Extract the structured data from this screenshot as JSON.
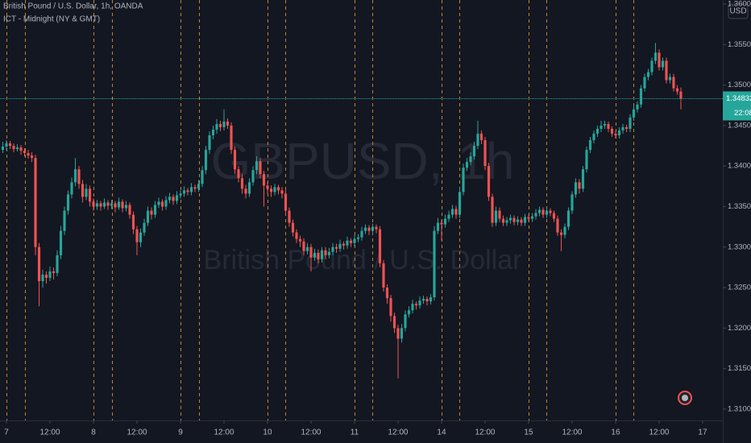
{
  "chart_data": {
    "type": "candlestick",
    "title": "British Pound / U.S. Dollar, 1h, OANDA",
    "indicator": "ICT - Midnight (NY & GMT)",
    "watermark": "GBPUSD, 1h",
    "watermark_subtitle": "British Pound / U.S. Dollar",
    "currency": "USD",
    "countdown": "22:08",
    "last_price": 1.34832,
    "up_color": "#26a69a",
    "down_color": "#ef5350",
    "session_color": "#c4832a",
    "price_line_color": "#26a69a",
    "ylim": [
      1.3086,
      1.3605
    ],
    "yticks": [
      {
        "value": 1.36,
        "label": "1.36000"
      },
      {
        "value": 1.355,
        "label": "1.35500"
      },
      {
        "value": 1.35,
        "label": "1.35000"
      },
      {
        "value": 1.345,
        "label": "1.34500"
      },
      {
        "value": 1.34,
        "label": "1.34000"
      },
      {
        "value": 1.335,
        "label": "1.33500"
      },
      {
        "value": 1.33,
        "label": "1.33000"
      },
      {
        "value": 1.325,
        "label": "1.32500"
      },
      {
        "value": 1.32,
        "label": "1.32000"
      },
      {
        "value": 1.315,
        "label": "1.31500"
      },
      {
        "value": 1.31,
        "label": "1.31000"
      }
    ],
    "xlim": [
      -0.78,
      198.56
    ],
    "xticks": [
      {
        "value": 1,
        "label": "7"
      },
      {
        "value": 13,
        "label": "12:00"
      },
      {
        "value": 25,
        "label": "8"
      },
      {
        "value": 37,
        "label": "12:00"
      },
      {
        "value": 49,
        "label": "9"
      },
      {
        "value": 61,
        "label": "12:00"
      },
      {
        "value": 73,
        "label": "10"
      },
      {
        "value": 85,
        "label": "12:00"
      },
      {
        "value": 97,
        "label": "11"
      },
      {
        "value": 109,
        "label": "12:00"
      },
      {
        "value": 121,
        "label": "14"
      },
      {
        "value": 133,
        "label": "12:00"
      },
      {
        "value": 145,
        "label": "15"
      },
      {
        "value": 157,
        "label": "12:00"
      },
      {
        "value": 169,
        "label": "16"
      },
      {
        "value": 181,
        "label": "12:00"
      },
      {
        "value": 193,
        "label": "17"
      }
    ],
    "session_lines": [
      1,
      6,
      25,
      30,
      49,
      54,
      73,
      78,
      97,
      102,
      121,
      126,
      145,
      150,
      169,
      174
    ],
    "ohlc": [
      [
        1.342,
        1.343,
        1.3416,
        1.3424
      ],
      [
        1.3424,
        1.3432,
        1.342,
        1.3428
      ],
      [
        1.3428,
        1.3431,
        1.3421,
        1.3425
      ],
      [
        1.3425,
        1.3428,
        1.3417,
        1.3421
      ],
      [
        1.3421,
        1.3427,
        1.3418,
        1.3423
      ],
      [
        1.3423,
        1.3426,
        1.3414,
        1.3419
      ],
      [
        1.3419,
        1.3422,
        1.3412,
        1.3416
      ],
      [
        1.3416,
        1.342,
        1.3409,
        1.3413
      ],
      [
        1.3413,
        1.3417,
        1.3405,
        1.341
      ],
      [
        1.341,
        1.3414,
        1.329,
        1.33
      ],
      [
        1.33,
        1.3305,
        1.3227,
        1.3258
      ],
      [
        1.3258,
        1.3272,
        1.325,
        1.3266
      ],
      [
        1.3266,
        1.327,
        1.3255,
        1.3262
      ],
      [
        1.3262,
        1.3276,
        1.3258,
        1.327
      ],
      [
        1.327,
        1.3275,
        1.326,
        1.3268
      ],
      [
        1.3268,
        1.3296,
        1.3264,
        1.329
      ],
      [
        1.329,
        1.3326,
        1.3285,
        1.332
      ],
      [
        1.332,
        1.335,
        1.3315,
        1.3345
      ],
      [
        1.3345,
        1.337,
        1.334,
        1.3365
      ],
      [
        1.3365,
        1.3386,
        1.336,
        1.338
      ],
      [
        1.338,
        1.341,
        1.3375,
        1.3396
      ],
      [
        1.3396,
        1.34,
        1.3372,
        1.3378
      ],
      [
        1.3378,
        1.3383,
        1.3355,
        1.3362
      ],
      [
        1.3362,
        1.3378,
        1.3358,
        1.3372
      ],
      [
        1.3372,
        1.3376,
        1.335,
        1.3356
      ],
      [
        1.3356,
        1.336,
        1.3345,
        1.335
      ],
      [
        1.335,
        1.3358,
        1.3346,
        1.3354
      ],
      [
        1.3354,
        1.3357,
        1.3345,
        1.335
      ],
      [
        1.335,
        1.336,
        1.3347,
        1.3355
      ],
      [
        1.3355,
        1.3358,
        1.3346,
        1.3351
      ],
      [
        1.3351,
        1.3358,
        1.3347,
        1.3354
      ],
      [
        1.3354,
        1.3357,
        1.3343,
        1.3349
      ],
      [
        1.3349,
        1.3361,
        1.3346,
        1.3356
      ],
      [
        1.3356,
        1.3359,
        1.3343,
        1.3348
      ],
      [
        1.3348,
        1.3357,
        1.3344,
        1.3352
      ],
      [
        1.3352,
        1.3355,
        1.3335,
        1.334
      ],
      [
        1.334,
        1.3344,
        1.3316,
        1.3322
      ],
      [
        1.3322,
        1.3326,
        1.329,
        1.3306
      ],
      [
        1.3306,
        1.3323,
        1.33,
        1.3318
      ],
      [
        1.3318,
        1.3335,
        1.3314,
        1.333
      ],
      [
        1.333,
        1.335,
        1.3326,
        1.3345
      ],
      [
        1.3345,
        1.3349,
        1.3334,
        1.334
      ],
      [
        1.334,
        1.3357,
        1.3336,
        1.3352
      ],
      [
        1.3352,
        1.3361,
        1.3348,
        1.3356
      ],
      [
        1.3356,
        1.3359,
        1.3345,
        1.335
      ],
      [
        1.335,
        1.3363,
        1.3346,
        1.3358
      ],
      [
        1.3358,
        1.3367,
        1.3354,
        1.3362
      ],
      [
        1.3362,
        1.3365,
        1.3352,
        1.3357
      ],
      [
        1.3357,
        1.3369,
        1.3353,
        1.3364
      ],
      [
        1.3364,
        1.337,
        1.336,
        1.3366
      ],
      [
        1.3366,
        1.3375,
        1.3362,
        1.337
      ],
      [
        1.337,
        1.3373,
        1.3364,
        1.3368
      ],
      [
        1.3368,
        1.3379,
        1.3364,
        1.3374
      ],
      [
        1.3374,
        1.3377,
        1.3368,
        1.3372
      ],
      [
        1.3372,
        1.3383,
        1.3368,
        1.3378
      ],
      [
        1.3378,
        1.34,
        1.3374,
        1.3395
      ],
      [
        1.3395,
        1.3425,
        1.339,
        1.342
      ],
      [
        1.342,
        1.3443,
        1.3415,
        1.3438
      ],
      [
        1.3438,
        1.345,
        1.3433,
        1.3445
      ],
      [
        1.3445,
        1.3458,
        1.344,
        1.3452
      ],
      [
        1.3452,
        1.3456,
        1.3443,
        1.3448
      ],
      [
        1.3448,
        1.347,
        1.3444,
        1.3455
      ],
      [
        1.3455,
        1.3459,
        1.3446,
        1.345
      ],
      [
        1.345,
        1.3454,
        1.3415,
        1.342
      ],
      [
        1.342,
        1.3424,
        1.339,
        1.3396
      ],
      [
        1.3396,
        1.34,
        1.338,
        1.3385
      ],
      [
        1.3385,
        1.339,
        1.3366,
        1.3372
      ],
      [
        1.3372,
        1.3377,
        1.336,
        1.3366
      ],
      [
        1.3366,
        1.3385,
        1.3362,
        1.338
      ],
      [
        1.338,
        1.34,
        1.3376,
        1.3395
      ],
      [
        1.3395,
        1.3412,
        1.339,
        1.3406
      ],
      [
        1.3406,
        1.341,
        1.3385,
        1.339
      ],
      [
        1.339,
        1.3394,
        1.335,
        1.3376
      ],
      [
        1.3376,
        1.338,
        1.3366,
        1.3372
      ],
      [
        1.3372,
        1.3376,
        1.3362,
        1.3368
      ],
      [
        1.3368,
        1.3378,
        1.3364,
        1.3374
      ],
      [
        1.3374,
        1.3377,
        1.3365,
        1.337
      ],
      [
        1.337,
        1.3374,
        1.336,
        1.3366
      ],
      [
        1.3366,
        1.337,
        1.334,
        1.3345
      ],
      [
        1.3345,
        1.3349,
        1.3325,
        1.333
      ],
      [
        1.333,
        1.3334,
        1.3313,
        1.3318
      ],
      [
        1.3318,
        1.3322,
        1.3305,
        1.331
      ],
      [
        1.331,
        1.3314,
        1.33,
        1.3307
      ],
      [
        1.3307,
        1.3311,
        1.329,
        1.3295
      ],
      [
        1.3295,
        1.3305,
        1.3291,
        1.33
      ],
      [
        1.33,
        1.3304,
        1.327,
        1.3287
      ],
      [
        1.3287,
        1.3298,
        1.3283,
        1.3293
      ],
      [
        1.3293,
        1.3297,
        1.328,
        1.3285
      ],
      [
        1.3285,
        1.33,
        1.3281,
        1.3296
      ],
      [
        1.3296,
        1.33,
        1.3285,
        1.329
      ],
      [
        1.329,
        1.3299,
        1.3286,
        1.3294
      ],
      [
        1.3294,
        1.3305,
        1.329,
        1.33
      ],
      [
        1.33,
        1.3304,
        1.3293,
        1.3298
      ],
      [
        1.3298,
        1.3309,
        1.3294,
        1.3304
      ],
      [
        1.3304,
        1.3307,
        1.3297,
        1.3302
      ],
      [
        1.3302,
        1.3313,
        1.3298,
        1.3308
      ],
      [
        1.3308,
        1.3311,
        1.33,
        1.3305
      ],
      [
        1.3305,
        1.3315,
        1.3301,
        1.331
      ],
      [
        1.331,
        1.3316,
        1.3306,
        1.3312
      ],
      [
        1.3312,
        1.3325,
        1.3308,
        1.332
      ],
      [
        1.332,
        1.3328,
        1.3316,
        1.3324
      ],
      [
        1.3324,
        1.3327,
        1.3315,
        1.332
      ],
      [
        1.332,
        1.3329,
        1.3316,
        1.3325
      ],
      [
        1.3325,
        1.3328,
        1.3317,
        1.3322
      ],
      [
        1.3322,
        1.3326,
        1.3275,
        1.328
      ],
      [
        1.328,
        1.3284,
        1.3245,
        1.325
      ],
      [
        1.325,
        1.3254,
        1.323,
        1.3237
      ],
      [
        1.3237,
        1.3241,
        1.3208,
        1.3215
      ],
      [
        1.3215,
        1.3219,
        1.3194,
        1.32
      ],
      [
        1.32,
        1.3204,
        1.3138,
        1.3187
      ],
      [
        1.3187,
        1.3205,
        1.3182,
        1.32
      ],
      [
        1.32,
        1.3222,
        1.3196,
        1.3217
      ],
      [
        1.3217,
        1.3227,
        1.3213,
        1.3222
      ],
      [
        1.3222,
        1.3235,
        1.3218,
        1.323
      ],
      [
        1.323,
        1.3233,
        1.3223,
        1.3228
      ],
      [
        1.3228,
        1.3239,
        1.3224,
        1.3234
      ],
      [
        1.3234,
        1.324,
        1.323,
        1.3236
      ],
      [
        1.3236,
        1.3239,
        1.3228,
        1.3233
      ],
      [
        1.3233,
        1.3242,
        1.3229,
        1.3238
      ],
      [
        1.3238,
        1.3326,
        1.3234,
        1.332
      ],
      [
        1.332,
        1.3336,
        1.3316,
        1.333
      ],
      [
        1.333,
        1.3334,
        1.3308,
        1.3328
      ],
      [
        1.3328,
        1.334,
        1.3324,
        1.3335
      ],
      [
        1.3335,
        1.3345,
        1.3331,
        1.334
      ],
      [
        1.334,
        1.3352,
        1.3336,
        1.3347
      ],
      [
        1.3347,
        1.3351,
        1.3335,
        1.334
      ],
      [
        1.334,
        1.3373,
        1.3336,
        1.3368
      ],
      [
        1.3368,
        1.3403,
        1.3364,
        1.3398
      ],
      [
        1.3398,
        1.341,
        1.3394,
        1.3405
      ],
      [
        1.3405,
        1.3417,
        1.3401,
        1.3412
      ],
      [
        1.3412,
        1.343,
        1.3408,
        1.3425
      ],
      [
        1.3425,
        1.3456,
        1.3421,
        1.344
      ],
      [
        1.344,
        1.3444,
        1.3427,
        1.3432
      ],
      [
        1.3432,
        1.3436,
        1.3395,
        1.34
      ],
      [
        1.34,
        1.3404,
        1.3357,
        1.3362
      ],
      [
        1.3362,
        1.3366,
        1.3325,
        1.333
      ],
      [
        1.333,
        1.335,
        1.3326,
        1.3345
      ],
      [
        1.3345,
        1.3349,
        1.3331,
        1.3335
      ],
      [
        1.3335,
        1.3339,
        1.3326,
        1.333
      ],
      [
        1.333,
        1.3337,
        1.3326,
        1.3333
      ],
      [
        1.3333,
        1.334,
        1.3329,
        1.3336
      ],
      [
        1.3336,
        1.3339,
        1.3327,
        1.3331
      ],
      [
        1.3331,
        1.3338,
        1.3327,
        1.3334
      ],
      [
        1.3334,
        1.3337,
        1.3326,
        1.333
      ],
      [
        1.333,
        1.3341,
        1.3326,
        1.3337
      ],
      [
        1.3337,
        1.334,
        1.3331,
        1.3335
      ],
      [
        1.3335,
        1.3342,
        1.3331,
        1.3338
      ],
      [
        1.3338,
        1.3347,
        1.3334,
        1.3342
      ],
      [
        1.3342,
        1.335,
        1.3338,
        1.3346
      ],
      [
        1.3346,
        1.3349,
        1.3336,
        1.334
      ],
      [
        1.334,
        1.3349,
        1.3336,
        1.3345
      ],
      [
        1.3345,
        1.3348,
        1.3338,
        1.3342
      ],
      [
        1.3342,
        1.3345,
        1.3331,
        1.3335
      ],
      [
        1.3335,
        1.3339,
        1.3314,
        1.3318
      ],
      [
        1.3318,
        1.3322,
        1.3295,
        1.3315
      ],
      [
        1.3315,
        1.3329,
        1.3311,
        1.3325
      ],
      [
        1.3325,
        1.3349,
        1.3321,
        1.3345
      ],
      [
        1.3345,
        1.3369,
        1.3341,
        1.3365
      ],
      [
        1.3365,
        1.3385,
        1.3361,
        1.338
      ],
      [
        1.338,
        1.3384,
        1.3366,
        1.3372
      ],
      [
        1.3372,
        1.34,
        1.3368,
        1.3396
      ],
      [
        1.3396,
        1.3424,
        1.3392,
        1.342
      ],
      [
        1.342,
        1.3436,
        1.3416,
        1.3432
      ],
      [
        1.3432,
        1.3444,
        1.3428,
        1.344
      ],
      [
        1.344,
        1.345,
        1.3436,
        1.3446
      ],
      [
        1.3446,
        1.3456,
        1.3442,
        1.345
      ],
      [
        1.345,
        1.3456,
        1.3446,
        1.3452
      ],
      [
        1.3452,
        1.3455,
        1.3442,
        1.3446
      ],
      [
        1.3446,
        1.3449,
        1.3436,
        1.344
      ],
      [
        1.344,
        1.3443,
        1.3434,
        1.3438
      ],
      [
        1.3438,
        1.3448,
        1.3434,
        1.3444
      ],
      [
        1.3444,
        1.3452,
        1.344,
        1.3448
      ],
      [
        1.3448,
        1.3451,
        1.3442,
        1.3446
      ],
      [
        1.3446,
        1.3464,
        1.3442,
        1.346
      ],
      [
        1.346,
        1.3474,
        1.3456,
        1.347
      ],
      [
        1.347,
        1.348,
        1.3466,
        1.3476
      ],
      [
        1.3476,
        1.35,
        1.3472,
        1.3496
      ],
      [
        1.3496,
        1.3514,
        1.3492,
        1.351
      ],
      [
        1.351,
        1.352,
        1.3506,
        1.3516
      ],
      [
        1.3516,
        1.3534,
        1.3512,
        1.353
      ],
      [
        1.353,
        1.3552,
        1.3526,
        1.354
      ],
      [
        1.354,
        1.3544,
        1.3518,
        1.3522
      ],
      [
        1.3522,
        1.3534,
        1.3518,
        1.353
      ],
      [
        1.353,
        1.3534,
        1.3502,
        1.3506
      ],
      [
        1.3506,
        1.3514,
        1.3502,
        1.351
      ],
      [
        1.351,
        1.3514,
        1.3492,
        1.3496
      ],
      [
        1.3496,
        1.35,
        1.3488,
        1.3492
      ],
      [
        1.3492,
        1.3497,
        1.347,
        1.3483
      ]
    ]
  }
}
